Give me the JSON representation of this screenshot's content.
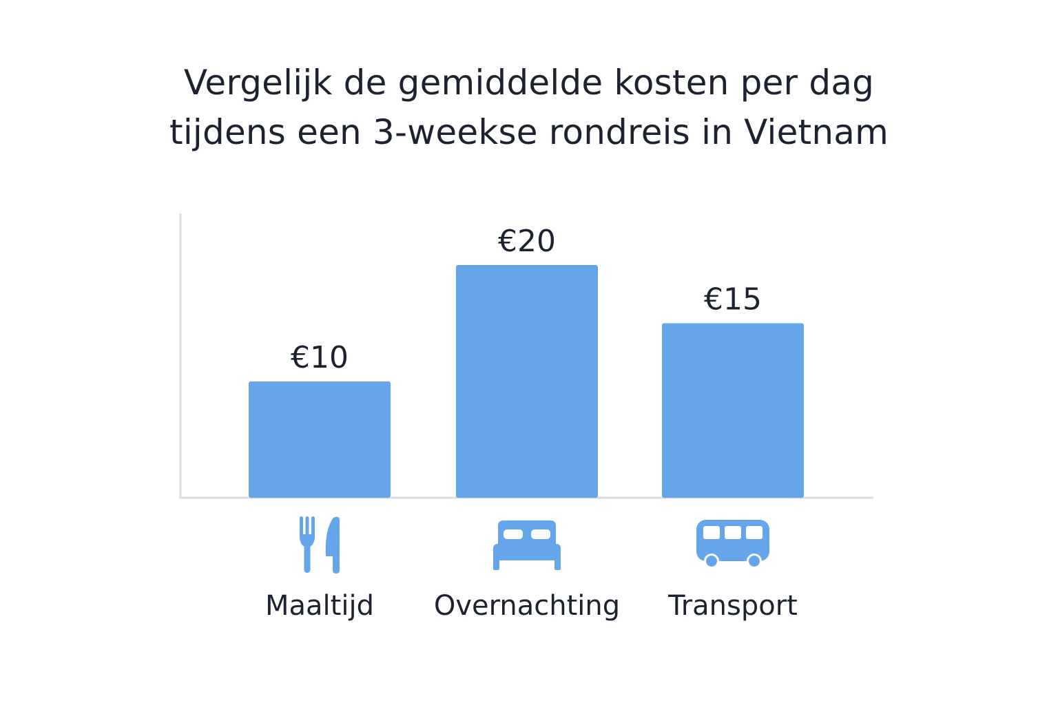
{
  "title": {
    "line1": "Vergelijk de gemiddelde kosten per dag",
    "line2": "tijdens een 3-weekse rondreis in Vietnam"
  },
  "colors": {
    "bar": "#64a6e9",
    "icon": "#64a6e9",
    "axis": "#dcdcdc",
    "text": "#1c2230"
  },
  "chart_data": {
    "type": "bar",
    "title": "Vergelijk de gemiddelde kosten per dag tijdens een 3-weekse rondreis in Vietnam",
    "categories": [
      "Maaltijd",
      "Overnachting",
      "Transport"
    ],
    "values": [
      10,
      20,
      15
    ],
    "value_labels": [
      "€10",
      "€20",
      "€15"
    ],
    "icons": [
      "fork-knife-icon",
      "bed-icon",
      "bus-icon"
    ],
    "currency": "€",
    "xlabel": "",
    "ylabel": "",
    "ylim": [
      0,
      24
    ],
    "grid": false,
    "legend": "none"
  }
}
